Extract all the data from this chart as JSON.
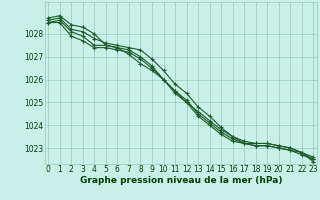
{
  "xlabel": "Graphe pression niveau de la mer (hPa)",
  "bg_color": "#c8f0e8",
  "grid_color": "#98c8b8",
  "line_color": "#1a5c28",
  "hours": [
    0,
    1,
    2,
    3,
    4,
    5,
    6,
    7,
    8,
    9,
    10,
    11,
    12,
    13,
    14,
    15,
    16,
    17,
    18,
    19,
    20,
    21,
    22,
    23
  ],
  "series": [
    [
      1028.7,
      1028.8,
      1028.4,
      1028.3,
      1028.0,
      1027.5,
      1027.4,
      1027.1,
      1026.7,
      1026.4,
      1026.0,
      1025.5,
      1025.0,
      1024.6,
      1024.2,
      1023.8,
      1023.5,
      1023.2,
      1023.1,
      1023.1,
      1023.0,
      1022.9,
      1022.7,
      1022.5
    ],
    [
      1028.6,
      1028.7,
      1028.2,
      1028.1,
      1027.8,
      1027.6,
      1027.5,
      1027.4,
      1027.3,
      1026.9,
      1026.4,
      1025.8,
      1025.4,
      1024.8,
      1024.4,
      1023.9,
      1023.5,
      1023.3,
      1023.2,
      1023.2,
      1023.1,
      1023.0,
      1022.8,
      1022.6
    ],
    [
      1028.5,
      1028.6,
      1028.1,
      1027.9,
      1027.5,
      1027.5,
      1027.4,
      1027.3,
      1027.0,
      1026.6,
      1026.0,
      1025.5,
      1025.1,
      1024.5,
      1024.1,
      1023.7,
      1023.4,
      1023.2,
      1023.2,
      1023.2,
      1023.1,
      1023.0,
      1022.8,
      1022.5
    ],
    [
      1028.5,
      1028.5,
      1027.9,
      1027.7,
      1027.4,
      1027.4,
      1027.3,
      1027.2,
      1026.9,
      1026.5,
      1026.0,
      1025.4,
      1025.0,
      1024.4,
      1024.0,
      1023.6,
      1023.3,
      1023.2,
      1023.1,
      1023.1,
      1023.0,
      1022.9,
      1022.8,
      1022.4
    ]
  ],
  "ylim": [
    1022.3,
    1029.4
  ],
  "yticks": [
    1023,
    1024,
    1025,
    1026,
    1027,
    1028
  ],
  "xtick_labels": [
    "0",
    "1",
    "2",
    "3",
    "4",
    "5",
    "6",
    "7",
    "8",
    "9",
    "10",
    "11",
    "12",
    "13",
    "14",
    "15",
    "16",
    "17",
    "18",
    "19",
    "20",
    "21",
    "22",
    "23"
  ],
  "tick_fontsize": 5.5,
  "xlabel_fontsize": 6.5,
  "marker": "+",
  "markersize": 3,
  "linewidth": 0.8
}
